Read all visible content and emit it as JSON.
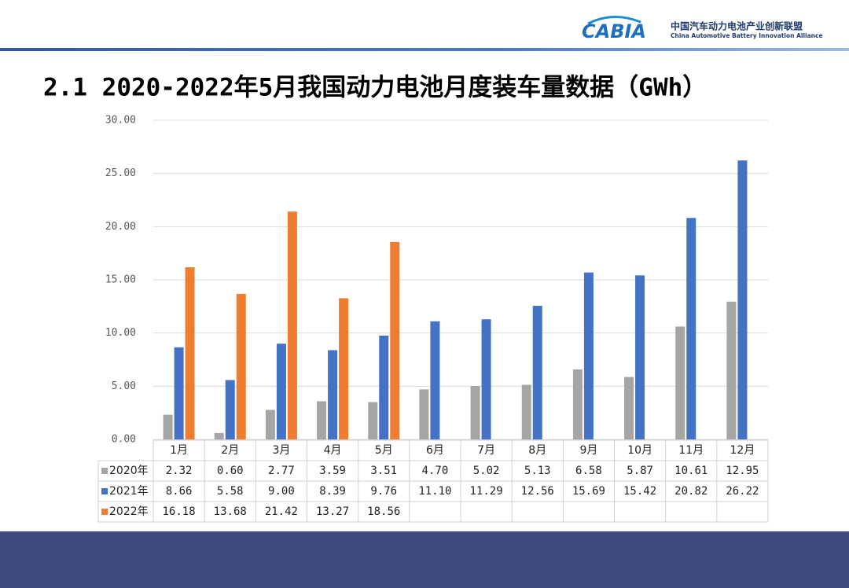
{
  "header": {
    "logo": "CABIA",
    "org_cn": "中国汽车动力电池产业创新联盟",
    "org_en": "China Automotive Battery Innovation Alliance"
  },
  "chart_data": {
    "type": "bar",
    "title": "2.1 2020-2022年5月我国动力电池月度装车量数据（GWh）",
    "categories": [
      "1月",
      "2月",
      "3月",
      "4月",
      "5月",
      "6月",
      "7月",
      "8月",
      "9月",
      "10月",
      "11月",
      "12月"
    ],
    "series": [
      {
        "name": "2020年",
        "color": "#a5a5a5",
        "values": [
          2.32,
          0.6,
          2.77,
          3.59,
          3.51,
          4.7,
          5.02,
          5.13,
          6.58,
          5.87,
          10.61,
          12.95
        ],
        "value_labels": [
          "2.32",
          "0.60",
          "2.77",
          "3.59",
          "3.51",
          "4.70",
          "5.02",
          "5.13",
          "6.58",
          "5.87",
          "10.61",
          "12.95"
        ]
      },
      {
        "name": "2021年",
        "color": "#4472c4",
        "values": [
          8.66,
          5.58,
          9.0,
          8.39,
          9.76,
          11.1,
          11.29,
          12.56,
          15.69,
          15.42,
          20.82,
          26.22
        ],
        "value_labels": [
          "8.66",
          "5.58",
          "9.00",
          "8.39",
          "9.76",
          "11.10",
          "11.29",
          "12.56",
          "15.69",
          "15.42",
          "20.82",
          "26.22"
        ]
      },
      {
        "name": "2022年",
        "color": "#ed7d31",
        "values": [
          16.18,
          13.68,
          21.42,
          13.27,
          18.56,
          null,
          null,
          null,
          null,
          null,
          null,
          null
        ],
        "value_labels": [
          "16.18",
          "13.68",
          "21.42",
          "13.27",
          "18.56",
          null,
          null,
          null,
          null,
          null,
          null,
          null
        ]
      }
    ],
    "ylim": [
      0,
      30
    ],
    "yticks": [
      {
        "value": 0,
        "label": "0.00"
      },
      {
        "value": 5,
        "label": "5.00"
      },
      {
        "value": 10,
        "label": "10.00"
      },
      {
        "value": 15,
        "label": "15.00"
      },
      {
        "value": 20,
        "label": "20.00"
      },
      {
        "value": 25,
        "label": "25.00"
      },
      {
        "value": 30,
        "label": "30.00"
      }
    ],
    "grid": true
  }
}
